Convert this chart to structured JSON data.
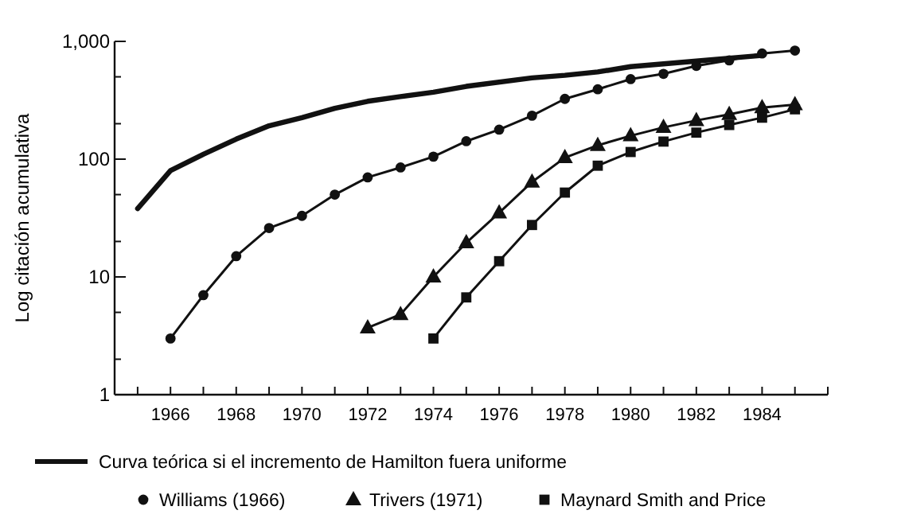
{
  "chart_data": {
    "type": "line",
    "ylabel": "Log citación acumulativa",
    "log": true,
    "xlim": [
      1964.3,
      1986
    ],
    "ylim": [
      1,
      1000
    ],
    "xticks": [
      {
        "value": 1965,
        "label": null
      },
      1966,
      {
        "value": 1967,
        "label": null
      },
      1968,
      {
        "value": 1969,
        "label": null
      },
      1970,
      {
        "value": 1971,
        "label": null
      },
      1972,
      {
        "value": 1973,
        "label": null
      },
      1974,
      {
        "value": 1975,
        "label": null
      },
      1976,
      {
        "value": 1977,
        "label": null
      },
      1978,
      {
        "value": 1979,
        "label": null
      },
      1980,
      {
        "value": 1981,
        "label": null
      },
      1982,
      {
        "value": 1983,
        "label": null
      },
      1984,
      {
        "value": 1985,
        "label": null
      },
      {
        "value": 1986,
        "label": null
      }
    ],
    "yticks": [
      1,
      {
        "value": 2,
        "label": null
      },
      {
        "value": 5,
        "label": null
      },
      10,
      {
        "value": 20,
        "label": null
      },
      {
        "value": 50,
        "label": null
      },
      100,
      {
        "value": 200,
        "label": null
      },
      {
        "value": 500,
        "label": null
      },
      {
        "value": 1000,
        "label": "1,000"
      }
    ],
    "legend": "bottom",
    "grid": false,
    "series": [
      {
        "name": "Curva teórica si el incremento de Hamilton fuera uniforme",
        "color": "#111111",
        "marker": "none",
        "x": [
          1965,
          1966,
          1967,
          1968,
          1969,
          1970,
          1971,
          1972,
          1973,
          1974,
          1975,
          1977,
          1978,
          1979,
          1980,
          1982,
          1983,
          1984
        ],
        "values": [
          38,
          80,
          110,
          148,
          192,
          225,
          270,
          310,
          340,
          370,
          415,
          490,
          515,
          550,
          610,
          680,
          720,
          760
        ]
      },
      {
        "name": "Williams (1966)",
        "color": "#111111",
        "marker": "circle",
        "x": [
          1966,
          1967,
          1968,
          1969,
          1970,
          1971,
          1972,
          1973,
          1974,
          1975,
          1976,
          1977,
          1978,
          1979,
          1980,
          1981,
          1982,
          1983,
          1984,
          1985
        ],
        "values": [
          3,
          7,
          15,
          26,
          33,
          50,
          70,
          85,
          105,
          142,
          178,
          234,
          325,
          392,
          478,
          530,
          620,
          690,
          790,
          835
        ]
      },
      {
        "name": "Trivers (1971)",
        "color": "#111111",
        "marker": "triangle",
        "x": [
          1972,
          1973,
          1974,
          1975,
          1976,
          1977,
          1978,
          1979,
          1980,
          1981,
          1982,
          1983,
          1984,
          1985
        ],
        "values": [
          3.7,
          4.8,
          10,
          19.5,
          35,
          64,
          103,
          131,
          158,
          186,
          213,
          240,
          274,
          290
        ]
      },
      {
        "name": "Maynard Smith and Price",
        "color": "#111111",
        "marker": "square",
        "x": [
          1974,
          1975,
          1976,
          1977,
          1978,
          1979,
          1980,
          1981,
          1982,
          1983,
          1984,
          1985
        ],
        "values": [
          3,
          6.7,
          13.6,
          27.6,
          52,
          88,
          115,
          141,
          168,
          195,
          225,
          265
        ]
      }
    ]
  }
}
